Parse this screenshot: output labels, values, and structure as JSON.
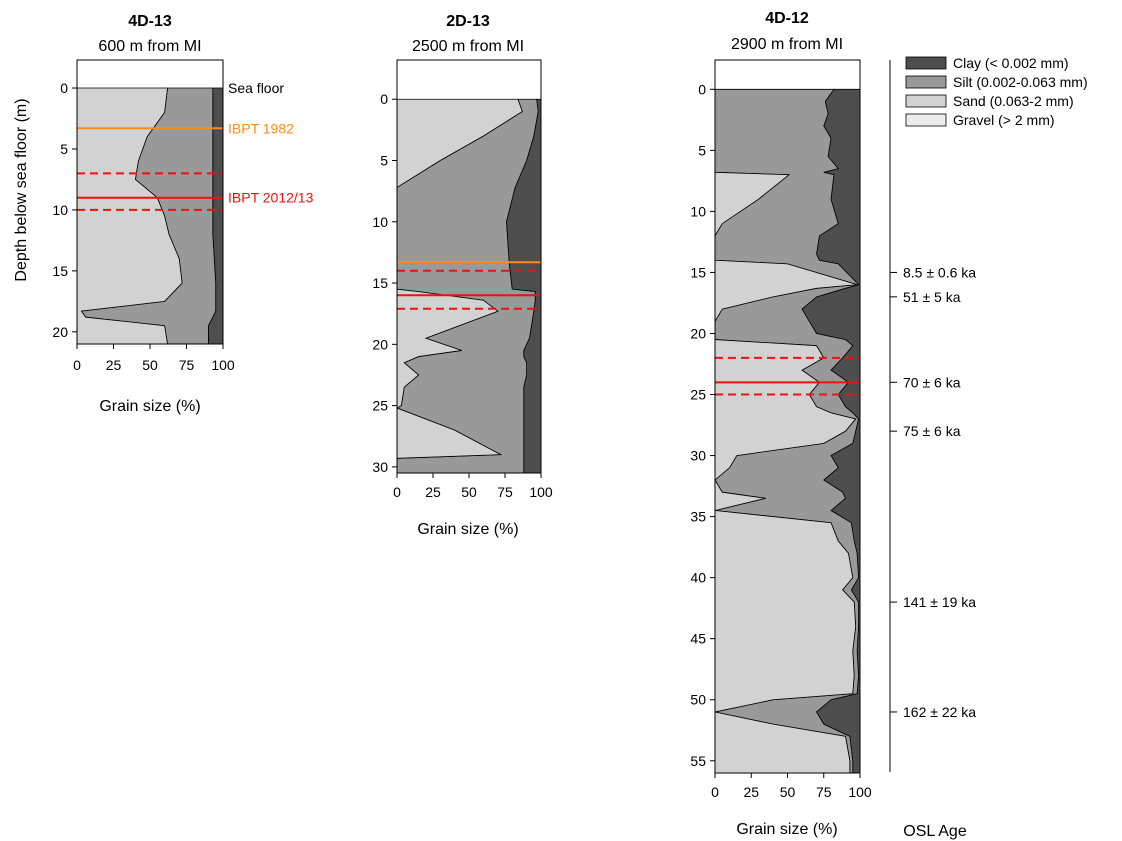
{
  "colors": {
    "clay": "#4e4e4e",
    "silt": "#999999",
    "sand": "#d2d2d2",
    "gravel": "#ececec",
    "ibpt1982": "#ff8c1a",
    "ibpt2012": "#ee1111"
  },
  "legend": [
    {
      "key": "clay",
      "label": "Clay (< 0.002 mm)"
    },
    {
      "key": "silt",
      "label": "Silt (0.002-0.063 mm)"
    },
    {
      "key": "sand",
      "label": "Sand (0.063-2 mm)"
    },
    {
      "key": "gravel",
      "label": "Gravel (> 2 mm)"
    }
  ],
  "y_axis_label": "Depth below sea floor (m)",
  "osl_label": "OSL Age",
  "chart_data": [
    {
      "type": "area",
      "id": "4D-13",
      "title": "4D-13",
      "subtitle": "600 m from MI",
      "xlabel": "Grain size (%)",
      "xlim": [
        0,
        100
      ],
      "ylim": [
        21,
        -2.3
      ],
      "xticks": [
        0,
        25,
        50,
        75,
        100
      ],
      "yticks": [
        0,
        5,
        10,
        15,
        20
      ],
      "annotations": [
        {
          "label": "Sea floor",
          "depth": 0,
          "color": "#000000"
        },
        {
          "label": "IBPT 1982",
          "depth": 3.3,
          "color": "#ff8c1a"
        },
        {
          "label": "IBPT 2012/13",
          "depth": 9,
          "color": "#ee1111"
        }
      ],
      "lines": [
        {
          "depth": 3.3,
          "color": "#ff8c1a",
          "dash": false
        },
        {
          "depth": 7,
          "color": "#ee1111",
          "dash": true
        },
        {
          "depth": 9,
          "color": "#ee1111",
          "dash": false
        },
        {
          "depth": 10,
          "color": "#ee1111",
          "dash": true
        }
      ],
      "profile": [
        {
          "d": 0,
          "g": 0,
          "s": 62,
          "si": 93
        },
        {
          "d": 2,
          "g": 0,
          "s": 60,
          "si": 93
        },
        {
          "d": 4,
          "g": 0,
          "s": 48,
          "si": 93
        },
        {
          "d": 6,
          "g": 0,
          "s": 42,
          "si": 93
        },
        {
          "d": 7.5,
          "g": 0,
          "s": 40,
          "si": 93
        },
        {
          "d": 9,
          "g": 0,
          "s": 55,
          "si": 93
        },
        {
          "d": 10.5,
          "g": 0,
          "s": 60,
          "si": 93
        },
        {
          "d": 12,
          "g": 0,
          "s": 63,
          "si": 93
        },
        {
          "d": 14,
          "g": 0,
          "s": 70,
          "si": 94
        },
        {
          "d": 16,
          "g": 0,
          "s": 72,
          "si": 95
        },
        {
          "d": 17.5,
          "g": 0,
          "s": 60,
          "si": 95
        },
        {
          "d": 18.3,
          "g": 0,
          "s": 3,
          "si": 95
        },
        {
          "d": 18.8,
          "g": 0,
          "s": 6,
          "si": 93
        },
        {
          "d": 19.5,
          "g": 0,
          "s": 60,
          "si": 90
        },
        {
          "d": 21,
          "g": 0,
          "s": 62,
          "si": 90
        }
      ]
    },
    {
      "type": "area",
      "id": "2D-13",
      "title": "2D-13",
      "subtitle": "2500 m from MI",
      "xlabel": "Grain size (%)",
      "xlim": [
        0,
        100
      ],
      "ylim": [
        30.5,
        -3.2
      ],
      "xticks": [
        0,
        25,
        50,
        75,
        100
      ],
      "yticks": [
        0,
        5,
        10,
        15,
        20,
        25,
        30
      ],
      "lines": [
        {
          "depth": 13.3,
          "color": "#ff8c1a",
          "dash": false
        },
        {
          "depth": 14,
          "color": "#ee1111",
          "dash": true
        },
        {
          "depth": 16,
          "color": "#ee1111",
          "dash": false
        },
        {
          "depth": 17.1,
          "color": "#ee1111",
          "dash": true
        }
      ],
      "profile": [
        {
          "d": 0,
          "g": 0,
          "s": 84,
          "si": 97
        },
        {
          "d": 1,
          "g": 0,
          "s": 87,
          "si": 98
        },
        {
          "d": 3,
          "g": 0,
          "s": 60,
          "si": 95
        },
        {
          "d": 5,
          "g": 0,
          "s": 30,
          "si": 90
        },
        {
          "d": 7.2,
          "g": 0,
          "s": 0,
          "si": 82
        },
        {
          "d": 10,
          "g": 0,
          "s": 0,
          "si": 76
        },
        {
          "d": 13.5,
          "g": 0,
          "s": 0,
          "si": 78
        },
        {
          "d": 15.5,
          "g": 0,
          "s": 0,
          "si": 80
        },
        {
          "d": 15.7,
          "g": 0,
          "s": 15,
          "si": 96
        },
        {
          "d": 16.4,
          "g": 0,
          "s": 60,
          "si": 96
        },
        {
          "d": 17.3,
          "g": 0,
          "s": 70,
          "si": 95
        },
        {
          "d": 19.5,
          "g": 0,
          "s": 20,
          "si": 92
        },
        {
          "d": 20.5,
          "g": 0,
          "s": 45,
          "si": 88
        },
        {
          "d": 21,
          "g": 0,
          "s": 15,
          "si": 88
        },
        {
          "d": 21.5,
          "g": 0,
          "s": 5,
          "si": 90
        },
        {
          "d": 22.5,
          "g": 0,
          "s": 15,
          "si": 90
        },
        {
          "d": 23.5,
          "g": 0,
          "s": 5,
          "si": 88
        },
        {
          "d": 25,
          "g": 0,
          "s": 3,
          "si": 88
        },
        {
          "d": 25.2,
          "g": 0,
          "s": 0,
          "si": 88
        },
        {
          "d": 27,
          "g": 0,
          "s": 40,
          "si": 88
        },
        {
          "d": 29,
          "g": 0,
          "s": 72,
          "si": 88
        },
        {
          "d": 29.3,
          "g": 0,
          "s": 0,
          "si": 88
        },
        {
          "d": 30.5,
          "g": 0,
          "s": 0,
          "si": 88
        }
      ]
    },
    {
      "type": "area",
      "id": "4D-12",
      "title": "4D-12",
      "subtitle": "2900 m from MI",
      "xlabel": "Grain size (%)",
      "xlim": [
        0,
        100
      ],
      "ylim": [
        56,
        -2.4
      ],
      "xticks": [
        0,
        25,
        50,
        75,
        100
      ],
      "yticks": [
        0,
        5,
        10,
        15,
        20,
        25,
        30,
        35,
        40,
        45,
        50,
        55
      ],
      "lines": [
        {
          "depth": 22,
          "color": "#ee1111",
          "dash": true
        },
        {
          "depth": 24,
          "color": "#ee1111",
          "dash": false
        },
        {
          "depth": 25,
          "color": "#ee1111",
          "dash": true
        }
      ],
      "osl_ages": [
        {
          "depth": 15,
          "label": "8.5 ± 0.6 ka"
        },
        {
          "depth": 17,
          "label": "51 ± 5 ka"
        },
        {
          "depth": 24,
          "label": "70 ± 6 ka"
        },
        {
          "depth": 28,
          "label": "75 ± 6 ka"
        },
        {
          "depth": 42,
          "label": "141 ± 19 ka"
        },
        {
          "depth": 51,
          "label": "162 ± 22 ka"
        }
      ],
      "profile": [
        {
          "d": 0,
          "g": 0,
          "s": 0,
          "si": 82
        },
        {
          "d": 1,
          "g": 0,
          "s": 0,
          "si": 76
        },
        {
          "d": 2,
          "g": 0,
          "s": 0,
          "si": 78
        },
        {
          "d": 3,
          "g": 0,
          "s": 0,
          "si": 75
        },
        {
          "d": 4,
          "g": 0,
          "s": 0,
          "si": 80
        },
        {
          "d": 5.5,
          "g": 0,
          "s": 0,
          "si": 78
        },
        {
          "d": 6.5,
          "g": 0,
          "s": 0,
          "si": 85
        },
        {
          "d": 6.8,
          "g": 0,
          "s": 0,
          "si": 75
        },
        {
          "d": 7,
          "g": 0,
          "s": 51,
          "si": 82
        },
        {
          "d": 9,
          "g": 0,
          "s": 30,
          "si": 80
        },
        {
          "d": 11,
          "g": 0,
          "s": 5,
          "si": 85
        },
        {
          "d": 12,
          "g": 0,
          "s": 0,
          "si": 72
        },
        {
          "d": 13.5,
          "g": 0,
          "s": 0,
          "si": 70
        },
        {
          "d": 14,
          "g": 0,
          "s": 0,
          "si": 72
        },
        {
          "d": 14.3,
          "g": 0,
          "s": 50,
          "si": 85
        },
        {
          "d": 16,
          "g": 0,
          "s": 98,
          "si": 99
        },
        {
          "d": 16.3,
          "g": 0,
          "s": 70,
          "si": 90
        },
        {
          "d": 17,
          "g": 0,
          "s": 40,
          "si": 70
        },
        {
          "d": 18,
          "g": 0,
          "s": 5,
          "si": 60
        },
        {
          "d": 19,
          "g": 0,
          "s": 0,
          "si": 65
        },
        {
          "d": 20,
          "g": 0,
          "s": 0,
          "si": 70
        },
        {
          "d": 20.5,
          "g": 0,
          "s": 0,
          "si": 90
        },
        {
          "d": 21,
          "g": 0,
          "s": 70,
          "si": 95
        },
        {
          "d": 22,
          "g": 0,
          "s": 75,
          "si": 88
        },
        {
          "d": 23,
          "g": 0,
          "s": 60,
          "si": 80
        },
        {
          "d": 24,
          "g": 0,
          "s": 72,
          "si": 92
        },
        {
          "d": 25,
          "g": 0,
          "s": 65,
          "si": 85
        },
        {
          "d": 26,
          "g": 0,
          "s": 70,
          "si": 90
        },
        {
          "d": 26.5,
          "g": 0,
          "s": 80,
          "si": 95
        },
        {
          "d": 27,
          "g": 0,
          "s": 97,
          "si": 99
        },
        {
          "d": 28,
          "g": 0,
          "s": 90,
          "si": 97
        },
        {
          "d": 29,
          "g": 0,
          "s": 75,
          "si": 95
        },
        {
          "d": 30,
          "g": 0,
          "s": 15,
          "si": 80
        },
        {
          "d": 31,
          "g": 0,
          "s": 10,
          "si": 85
        },
        {
          "d": 32,
          "g": 0,
          "s": 0,
          "si": 75
        },
        {
          "d": 33,
          "g": 0,
          "s": 5,
          "si": 88
        },
        {
          "d": 33.5,
          "g": 0,
          "s": 35,
          "si": 90
        },
        {
          "d": 34.5,
          "g": 0,
          "s": 0,
          "si": 80
        },
        {
          "d": 35.5,
          "g": 0,
          "s": 80,
          "si": 94
        },
        {
          "d": 37,
          "g": 0,
          "s": 85,
          "si": 96
        },
        {
          "d": 38,
          "g": 0,
          "s": 92,
          "si": 98
        },
        {
          "d": 40,
          "g": 0,
          "s": 95,
          "si": 99
        },
        {
          "d": 41,
          "g": 0,
          "s": 88,
          "si": 94
        },
        {
          "d": 42,
          "g": 0,
          "s": 96,
          "si": 99
        },
        {
          "d": 44,
          "g": 0,
          "s": 97,
          "si": 99
        },
        {
          "d": 46,
          "g": 0,
          "s": 95,
          "si": 98
        },
        {
          "d": 48,
          "g": 0,
          "s": 96,
          "si": 99
        },
        {
          "d": 49.5,
          "g": 0,
          "s": 95,
          "si": 98
        },
        {
          "d": 50,
          "g": 0,
          "s": 40,
          "si": 80
        },
        {
          "d": 51,
          "g": 0,
          "s": 0,
          "si": 70
        },
        {
          "d": 52,
          "g": 0,
          "s": 40,
          "si": 75
        },
        {
          "d": 53,
          "g": 0,
          "s": 90,
          "si": 93
        },
        {
          "d": 55,
          "g": 0,
          "s": 93,
          "si": 95
        },
        {
          "d": 56,
          "g": 0,
          "s": 93,
          "si": 95
        }
      ]
    }
  ]
}
